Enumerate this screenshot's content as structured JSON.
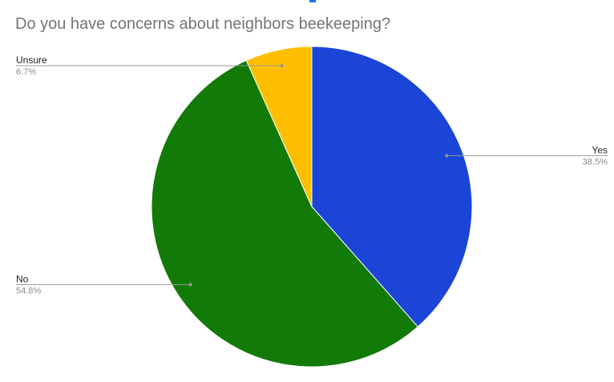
{
  "chart_data": {
    "type": "pie",
    "title": "Do you have concerns about neighbors beekeeping?",
    "slices": [
      {
        "label": "Yes",
        "value": 38.5,
        "display": "38.5%",
        "color": "#1a45d6",
        "label_side": "right"
      },
      {
        "label": "No",
        "value": 54.8,
        "display": "54.8%",
        "color": "#127a07",
        "label_side": "left"
      },
      {
        "label": "Unsure",
        "value": 6.7,
        "display": "6.7%",
        "color": "#ffbf00",
        "label_side": "left"
      }
    ],
    "start_angle_deg": 0,
    "direction": "clockwise",
    "legend": "none"
  }
}
